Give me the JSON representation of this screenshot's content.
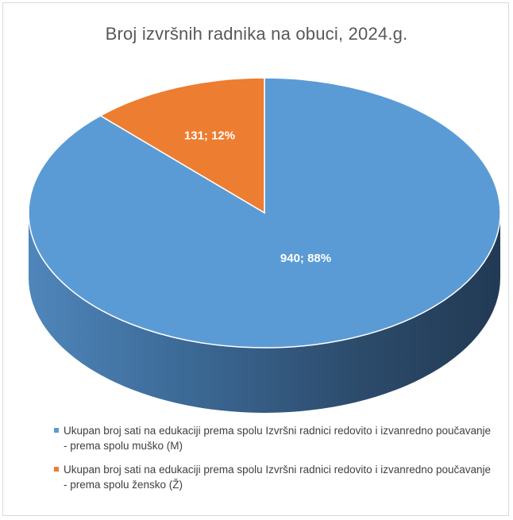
{
  "chart_data": {
    "type": "pie",
    "title": "Broj izvršnih radnika na obuci, 2024.g.",
    "series": [
      {
        "name": "Ukupan broj sati na edukaciji prema spolu Izvršni radnici redovito i izvanredno poučavanje - prema spolu muško (M)",
        "value": 940,
        "percent": 88,
        "label": "940; 88%",
        "color": "#5b9bd5"
      },
      {
        "name": "Ukupan broj sati na edukaciji prema spolu Izvršni radnici redovito i izvanredno poučavanje - prema spolu žensko (Ž)",
        "value": 131,
        "percent": 12,
        "label": "131; 12%",
        "color": "#ed7d31"
      }
    ],
    "legend": "bottom"
  },
  "legend": [
    {
      "line1": "Ukupan broj sati na edukaciji prema spolu Izvršni radnici redovito i izvanredno poučavanje",
      "line2": "- prema spolu muško (M)",
      "color": "#5b9bd5"
    },
    {
      "line1": "Ukupan broj sati na edukaciji prema spolu Izvršni radnici redovito i izvanredno poučavanje",
      "line2": "- prema spolu žensko (Ž)",
      "color": "#ed7d31"
    }
  ]
}
